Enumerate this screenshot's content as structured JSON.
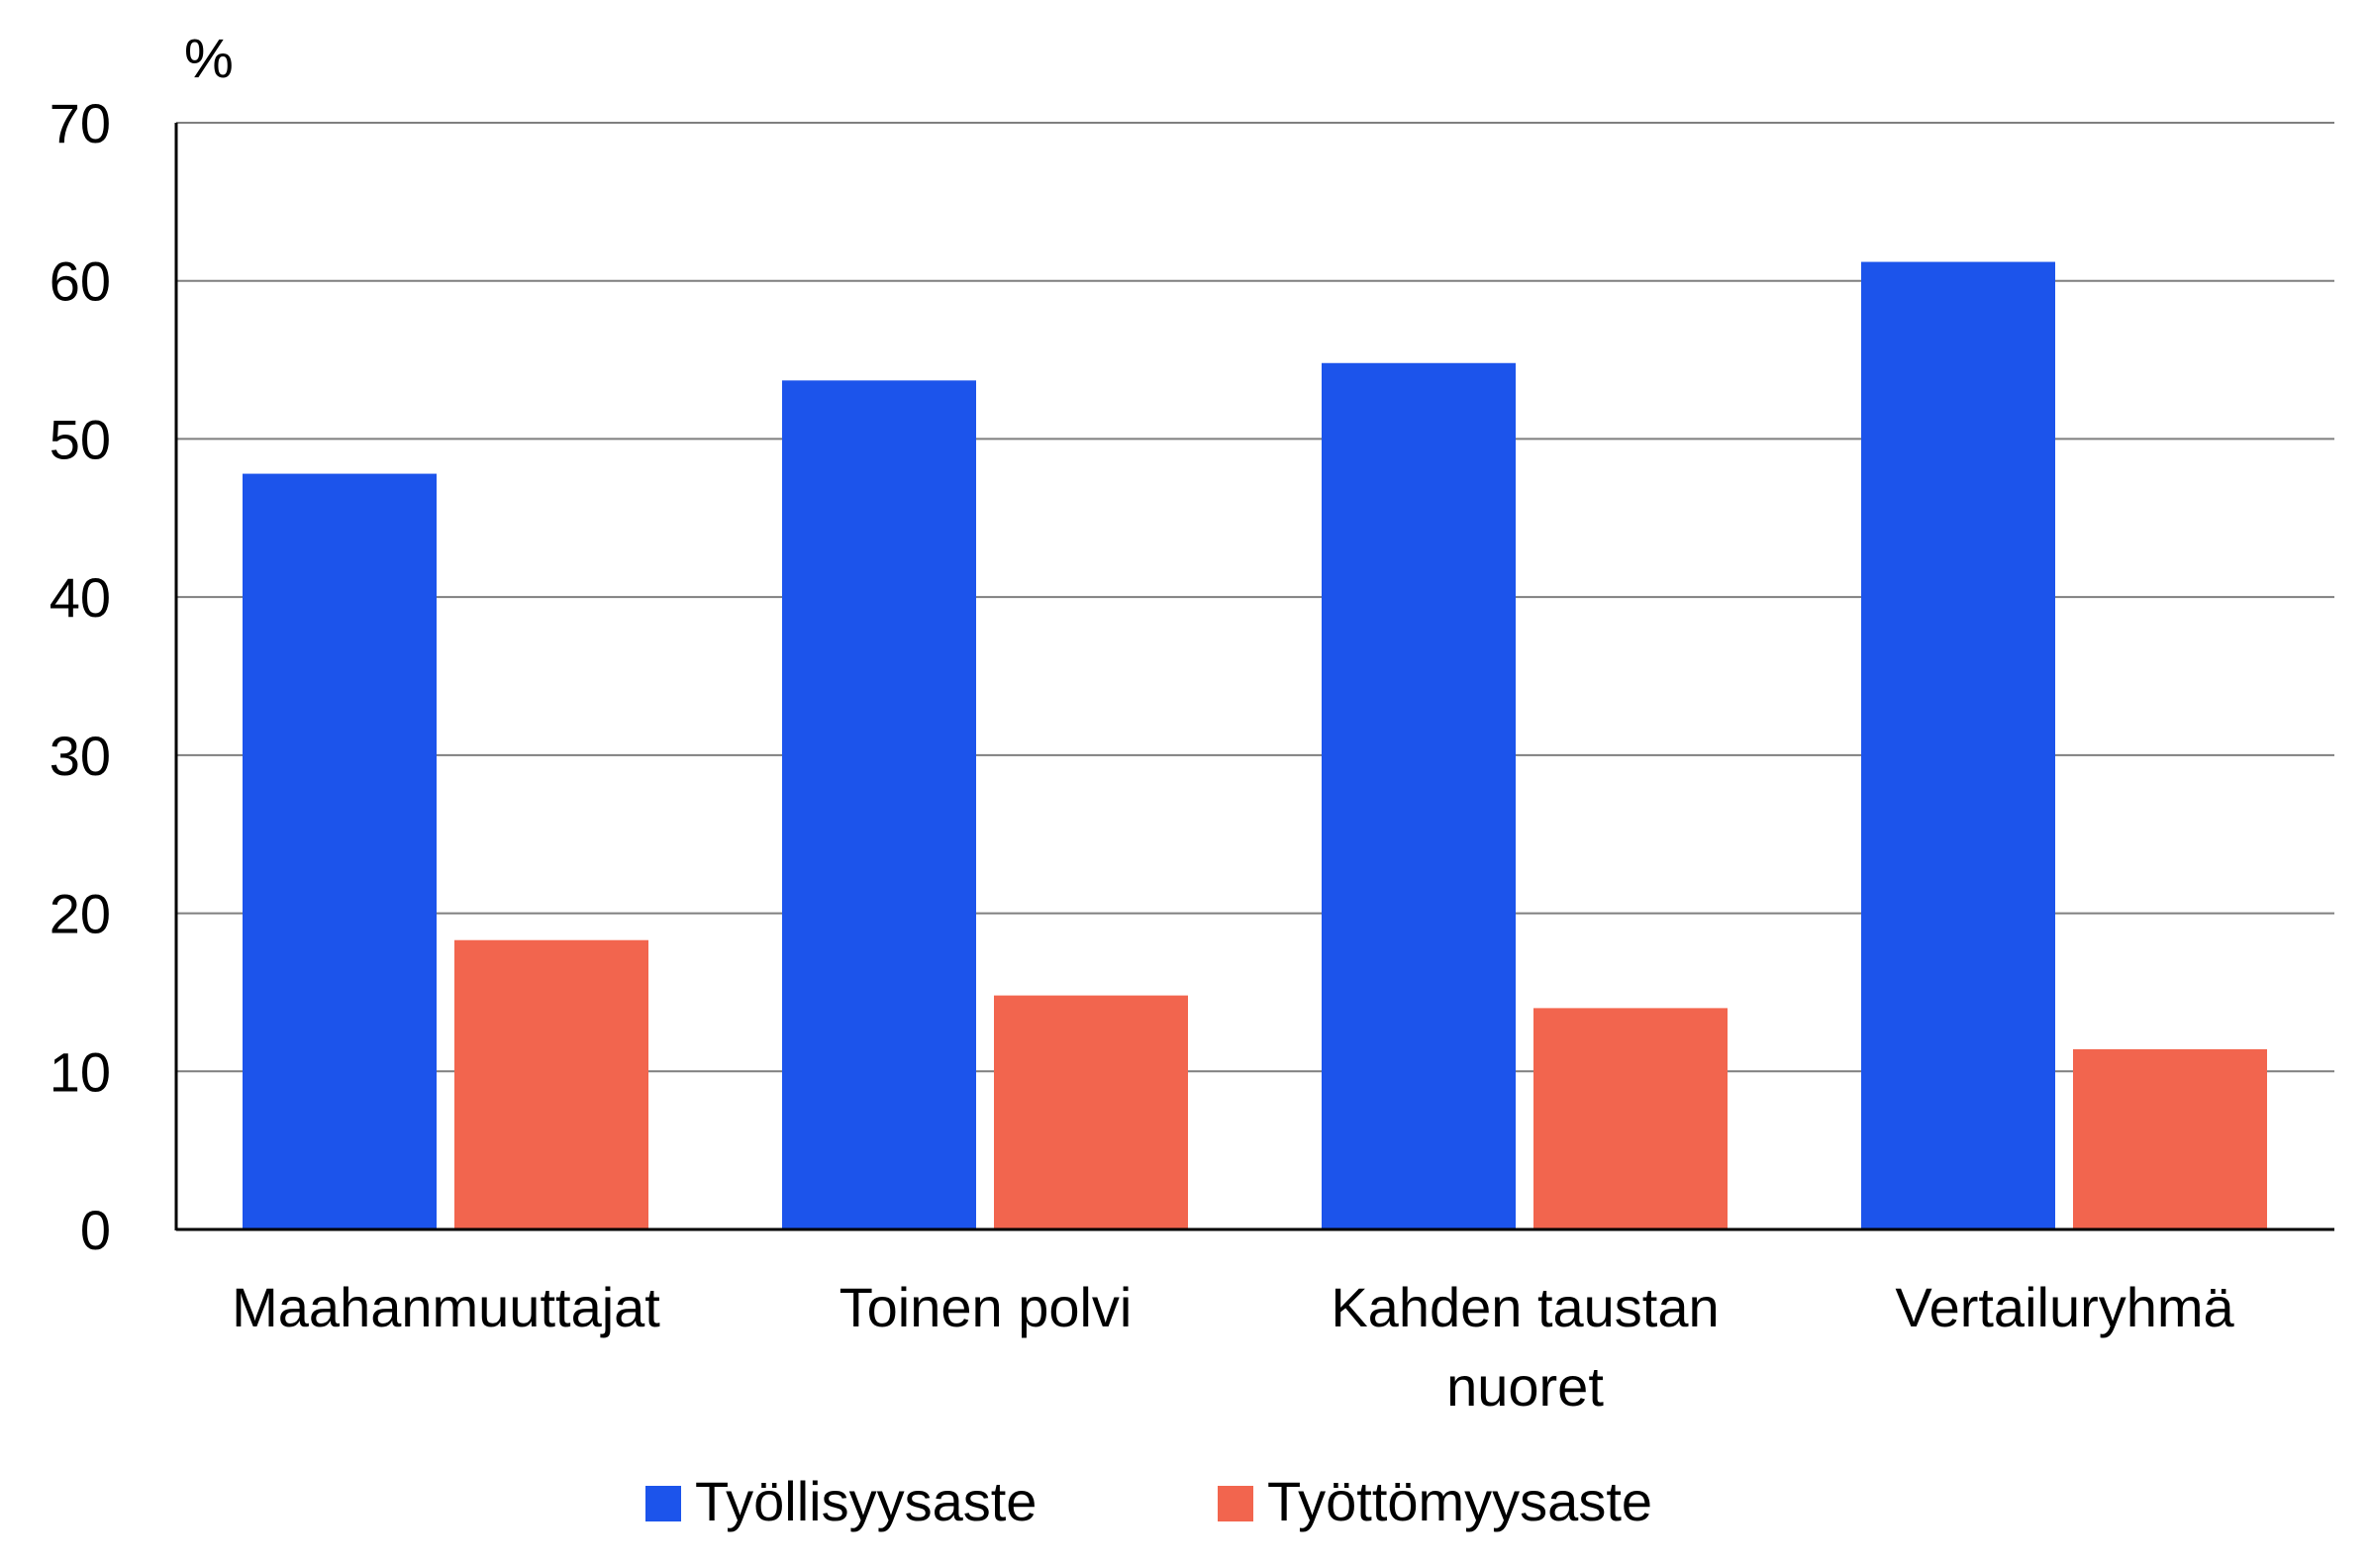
{
  "chart_data": {
    "type": "bar",
    "unit_label": "%",
    "categories": [
      [
        "Maahanmuuttajat"
      ],
      [
        "Toinen polvi"
      ],
      [
        "Kahden taustan",
        "nuoret"
      ],
      [
        "Vertailuryhmä"
      ]
    ],
    "series": [
      {
        "name": "Työllisyysaste",
        "color": "#1c54eb",
        "values": [
          47.8,
          53.7,
          54.8,
          61.2
        ]
      },
      {
        "name": "Työttömyysaste",
        "color": "#f2654e",
        "values": [
          18.3,
          14.8,
          14.0,
          11.4
        ]
      }
    ],
    "ylim": [
      0,
      70
    ],
    "yticks": [
      0,
      10,
      20,
      30,
      40,
      50,
      60,
      70
    ],
    "grid": true,
    "legend_position": "bottom"
  }
}
